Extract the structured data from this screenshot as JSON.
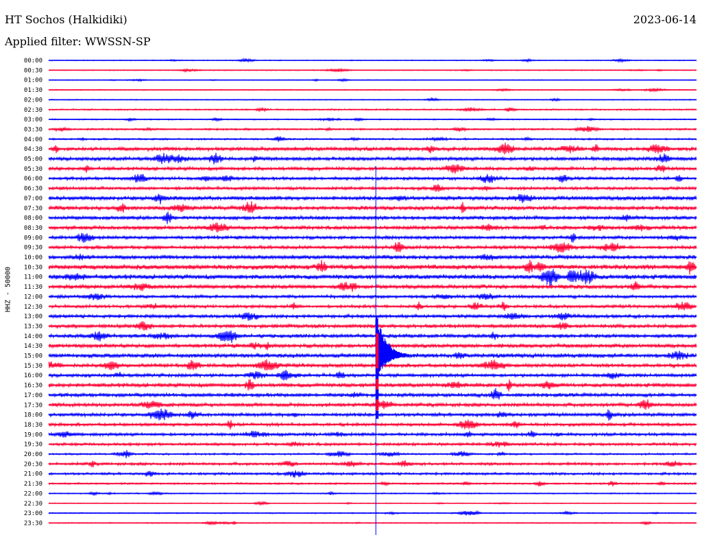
{
  "header": {
    "station": "HT Sochos (Halkidiki)",
    "date": "2023-06-14",
    "filter": "Applied filter: WWSSN-SP"
  },
  "chart_data": {
    "type": "line",
    "title": "HT Sochos (Halkidiki)",
    "ylabel": "HHZ - 50000",
    "xlabel": "",
    "row_labels": [
      "00:00",
      "00:30",
      "01:00",
      "01:30",
      "02:00",
      "02:30",
      "03:00",
      "03:30",
      "04:00",
      "04:30",
      "05:00",
      "05:30",
      "06:00",
      "06:30",
      "07:00",
      "07:30",
      "08:00",
      "08:30",
      "09:00",
      "09:30",
      "10:00",
      "10:30",
      "11:00",
      "11:30",
      "12:00",
      "12:30",
      "13:00",
      "13:30",
      "14:00",
      "14:30",
      "15:00",
      "15:30",
      "16:00",
      "16:30",
      "17:00",
      "17:30",
      "18:00",
      "18:30",
      "19:00",
      "19:30",
      "20:00",
      "20:30",
      "21:00",
      "21:30",
      "22:00",
      "22:30",
      "23:00",
      "23:30"
    ],
    "row_noise": [
      0.6,
      0.6,
      0.5,
      0.6,
      0.6,
      1.0,
      0.8,
      1.2,
      1.2,
      2.4,
      2.4,
      2.2,
      2.0,
      2.0,
      2.6,
      2.6,
      2.4,
      2.4,
      2.2,
      2.2,
      2.6,
      3.2,
      3.0,
      2.6,
      2.0,
      2.0,
      2.2,
      2.4,
      2.4,
      2.6,
      2.8,
      2.4,
      2.2,
      2.6,
      2.4,
      2.4,
      2.2,
      2.0,
      2.0,
      1.8,
      1.2,
      1.8,
      1.6,
      1.2,
      0.8,
      0.6,
      0.8,
      0.7
    ],
    "row_colors": [
      "#0000ff",
      "#ff0033"
    ],
    "event_row": 30,
    "event_position": 0.505,
    "grid": false
  }
}
